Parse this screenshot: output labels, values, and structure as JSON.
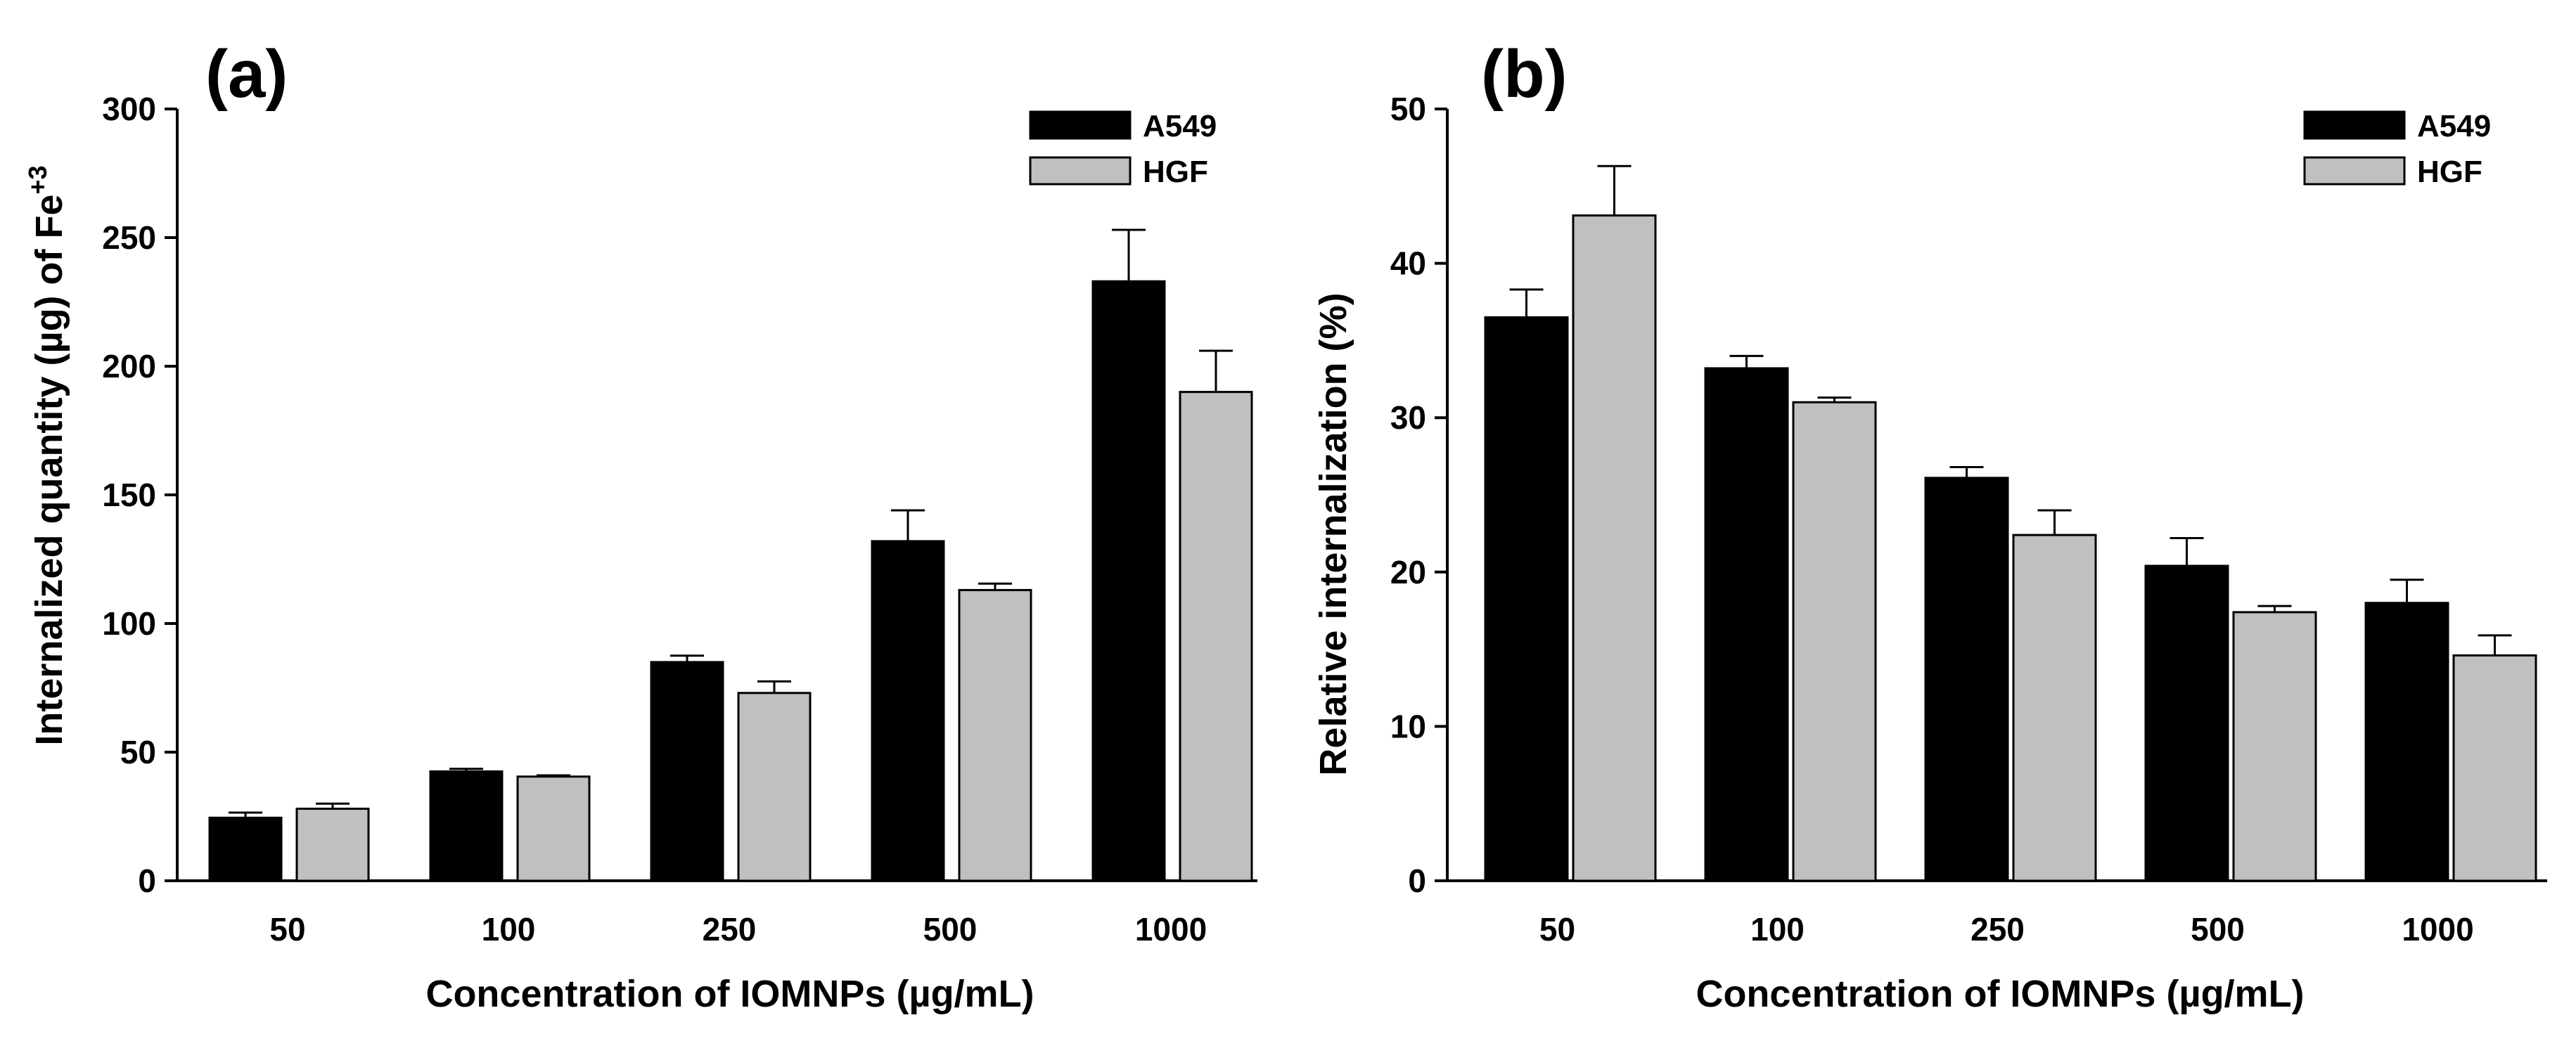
{
  "colors": {
    "A549": "#000000",
    "HGF": "#c0c0c0",
    "axis": "#000000"
  },
  "chart_data": [
    {
      "type": "bar",
      "panel_label": "(a)",
      "categories": [
        "50",
        "100",
        "250",
        "500",
        "1000"
      ],
      "series": [
        {
          "name": "A549",
          "values": [
            24.5,
            42.5,
            85,
            132,
            233
          ],
          "errors": [
            2,
            1,
            2.5,
            12,
            20
          ]
        },
        {
          "name": "HGF",
          "values": [
            28,
            40.5,
            73,
            113,
            190
          ],
          "errors": [
            2,
            0.5,
            4.5,
            2.5,
            16
          ]
        }
      ],
      "xlabel": "Concentration of IOMNPs (µg/mL)",
      "ylabel_main": "Internalized quantity (µg) of Fe",
      "ylabel_sup": "+3",
      "ylim": [
        0,
        300
      ],
      "yticks": [
        "0",
        "50",
        "100",
        "150",
        "200",
        "250",
        "300"
      ],
      "legend": [
        "A549",
        "HGF"
      ],
      "legend_position": "top-right"
    },
    {
      "type": "bar",
      "panel_label": "(b)",
      "categories": [
        "50",
        "100",
        "250",
        "500",
        "1000"
      ],
      "series": [
        {
          "name": "A549",
          "values": [
            36.5,
            33.2,
            26.1,
            20.4,
            18
          ],
          "errors": [
            1.8,
            0.8,
            0.7,
            1.8,
            1.5
          ]
        },
        {
          "name": "HGF",
          "values": [
            43.1,
            31,
            22.4,
            17.4,
            14.6
          ],
          "errors": [
            3.2,
            0.3,
            1.6,
            0.4,
            1.3
          ]
        }
      ],
      "xlabel": "Concentration of IOMNPs (µg/mL)",
      "ylabel_main": "Relative internalization (%)",
      "ylabel_sup": "",
      "ylim": [
        0,
        50
      ],
      "yticks": [
        "0",
        "10",
        "20",
        "30",
        "40",
        "50"
      ],
      "legend": [
        "A549",
        "HGF"
      ],
      "legend_position": "top-right"
    }
  ]
}
